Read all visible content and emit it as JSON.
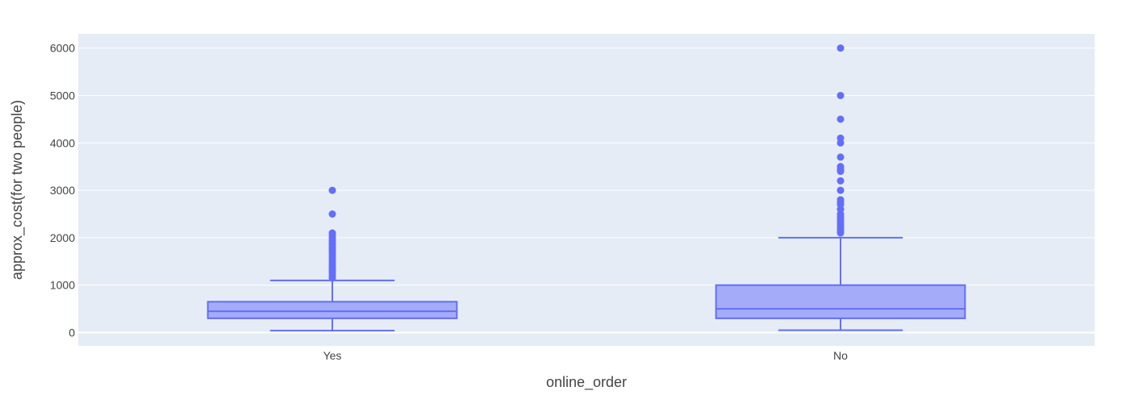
{
  "chart_data": {
    "type": "box",
    "xlabel": "online_order",
    "ylabel": "approx_cost(for two people)",
    "ylim": [
      -280,
      6300
    ],
    "yticks": [
      0,
      1000,
      2000,
      3000,
      4000,
      5000,
      6000
    ],
    "grid": true,
    "legend": "none",
    "colors": {
      "plot_bg": "#e5ecf6",
      "grid": "#ffffff",
      "box_line": "#636efa",
      "box_fill": "#a4abf8",
      "outlier": "#636efa"
    },
    "categories": [
      "Yes",
      "No"
    ],
    "boxes": [
      {
        "category": "Yes",
        "lower_fence": 40,
        "q1": 300,
        "median": 450,
        "q3": 650,
        "upper_fence": 1100,
        "outliers": [
          1150,
          1200,
          1250,
          1300,
          1350,
          1400,
          1450,
          1500,
          1550,
          1600,
          1650,
          1700,
          1750,
          1800,
          1850,
          1900,
          1950,
          2000,
          2050,
          2100,
          2500,
          3000
        ]
      },
      {
        "category": "No",
        "lower_fence": 50,
        "q1": 300,
        "median": 500,
        "q3": 1000,
        "upper_fence": 2000,
        "outliers": [
          2100,
          2150,
          2200,
          2250,
          2300,
          2350,
          2400,
          2450,
          2500,
          2600,
          2700,
          2750,
          2800,
          3000,
          3200,
          3400,
          3450,
          3500,
          3700,
          4000,
          4100,
          4500,
          5000,
          6000
        ]
      }
    ]
  }
}
